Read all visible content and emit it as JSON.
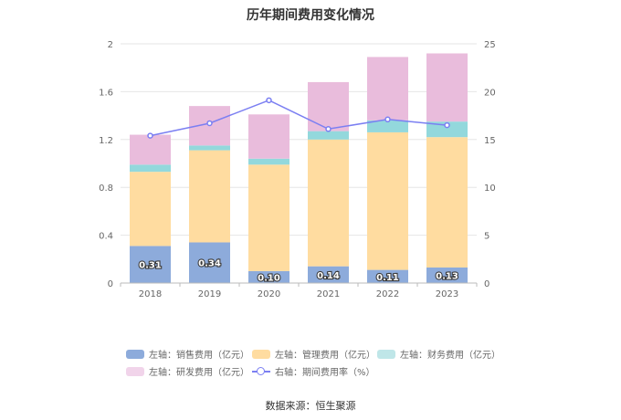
{
  "title": "历年期间费用变化情况",
  "source": "数据来源：恒生聚源",
  "chart_data": {
    "type": "bar",
    "stacked": true,
    "categories": [
      "2018",
      "2019",
      "2020",
      "2021",
      "2022",
      "2023"
    ],
    "left_axis": {
      "ylim": [
        0,
        2
      ],
      "ticks": [
        "0",
        "0.4",
        "0.8",
        "1.2",
        "1.6",
        "2"
      ]
    },
    "right_axis": {
      "ylim": [
        0,
        25
      ],
      "ticks": [
        "0",
        "5",
        "10",
        "15",
        "20",
        "25"
      ]
    },
    "series": [
      {
        "name": "左轴：销售费用（亿元）",
        "axis": "left",
        "color": "#8dabdb",
        "values": [
          0.31,
          0.34,
          0.1,
          0.14,
          0.11,
          0.13
        ],
        "labels": [
          "0.31",
          "0.34",
          "0.10",
          "0.14",
          "0.11",
          "0.13"
        ]
      },
      {
        "name": "左轴：管理费用（亿元）",
        "axis": "left",
        "color": "#ffdca0",
        "values": [
          0.62,
          0.77,
          0.89,
          1.06,
          1.15,
          1.09
        ]
      },
      {
        "name": "左轴：财务费用（亿元）",
        "axis": "left",
        "color": "#93d8dc",
        "values": [
          0.06,
          0.04,
          0.05,
          0.07,
          0.1,
          0.13
        ]
      },
      {
        "name": "左轴：研发费用（亿元）",
        "axis": "left",
        "color": "#e9bcdc",
        "values": [
          0.25,
          0.33,
          0.37,
          0.41,
          0.53,
          0.57
        ]
      },
      {
        "name": "右轴：期间费用率（%）",
        "axis": "right",
        "type": "line",
        "color": "#7b7ff2",
        "values": [
          15.4,
          16.7,
          19.1,
          16.1,
          17.1,
          16.5
        ]
      }
    ],
    "grid": true,
    "legend_position": "bottom"
  }
}
